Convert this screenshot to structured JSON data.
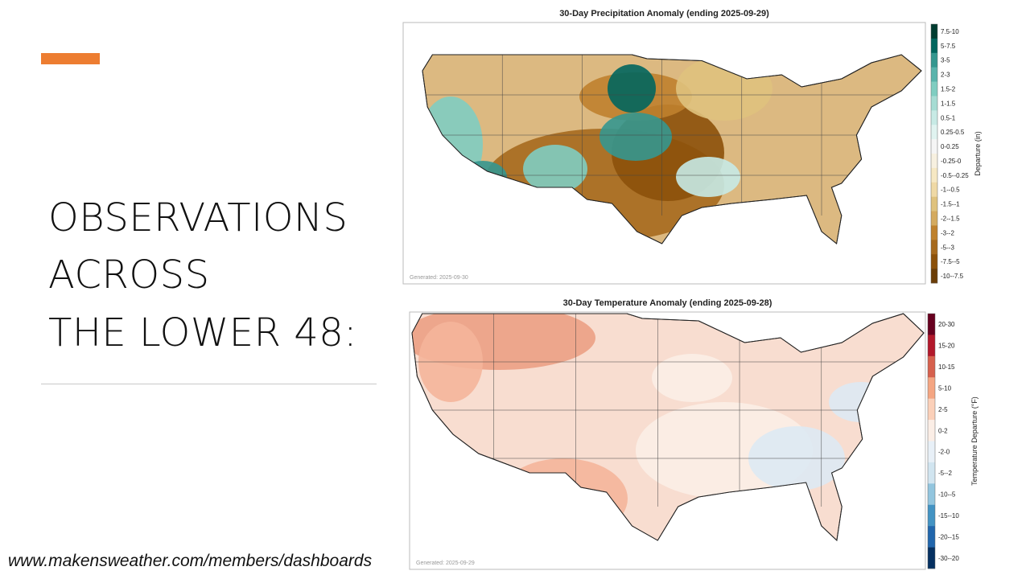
{
  "slide": {
    "title_lines": [
      "OBSERVATIONS",
      "ACROSS",
      "THE LOWER 48:"
    ],
    "url": "www.makensweather.com/members/dashboards"
  },
  "maps": [
    {
      "title": "30-Day Precipitation Anomaly (ending 2025-09-29)",
      "generated": "Generated: 2025-09-30",
      "legend_title": "Departure (in)",
      "legend": [
        {
          "label": "7.5-10",
          "color": "#003c30"
        },
        {
          "label": "5-7.5",
          "color": "#01665e"
        },
        {
          "label": "3-5",
          "color": "#35978f"
        },
        {
          "label": "2-3",
          "color": "#5ab4ac"
        },
        {
          "label": "1.5-2",
          "color": "#80cdc1"
        },
        {
          "label": "1-1.5",
          "color": "#a6dcd3"
        },
        {
          "label": "0.5-1",
          "color": "#c7eae5"
        },
        {
          "label": "0.25-0.5",
          "color": "#e0f3f0"
        },
        {
          "label": "0-0.25",
          "color": "#f5f5f5"
        },
        {
          "label": "-0.25-0",
          "color": "#f7f0e0"
        },
        {
          "label": "-0.5--0.25",
          "color": "#f6e8c3"
        },
        {
          "label": "-1--0.5",
          "color": "#efd9a5"
        },
        {
          "label": "-1.5--1",
          "color": "#dfc27d"
        },
        {
          "label": "-2--1.5",
          "color": "#d4aa5f"
        },
        {
          "label": "-3--2",
          "color": "#bf812d"
        },
        {
          "label": "-5--3",
          "color": "#a66a1e"
        },
        {
          "label": "-7.5--5",
          "color": "#8c510a"
        },
        {
          "label": "-10--7.5",
          "color": "#6b3d07"
        }
      ]
    },
    {
      "title": "30-Day Temperature Anomaly (ending 2025-09-28)",
      "generated": "Generated: 2025-09-29",
      "legend_title": "Temperature Departure (°F)",
      "legend": [
        {
          "label": "20-30",
          "color": "#67001f"
        },
        {
          "label": "15-20",
          "color": "#b2182b"
        },
        {
          "label": "10-15",
          "color": "#d6604d"
        },
        {
          "label": "5-10",
          "color": "#f4a582"
        },
        {
          "label": "2-5",
          "color": "#fbd0b9"
        },
        {
          "label": "0-2",
          "color": "#fbeee6"
        },
        {
          "label": "-2-0",
          "color": "#e8f0f7"
        },
        {
          "label": "-5--2",
          "color": "#d1e5f0"
        },
        {
          "label": "-10--5",
          "color": "#92c5de"
        },
        {
          "label": "-15--10",
          "color": "#4393c3"
        },
        {
          "label": "-20--15",
          "color": "#2166ac"
        },
        {
          "label": "-30--20",
          "color": "#053061"
        }
      ]
    }
  ]
}
